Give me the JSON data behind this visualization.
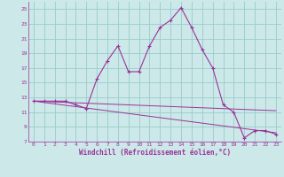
{
  "xlabel": "Windchill (Refroidissement éolien,°C)",
  "bg_color": "#cce8e8",
  "grid_color": "#99cccc",
  "line_color": "#993399",
  "xmin": -0.5,
  "xmax": 23.5,
  "ymin": 7,
  "ymax": 26,
  "yticks": [
    7,
    9,
    11,
    13,
    15,
    17,
    19,
    21,
    23,
    25
  ],
  "xticks": [
    0,
    1,
    2,
    3,
    4,
    5,
    6,
    7,
    8,
    9,
    10,
    11,
    12,
    13,
    14,
    15,
    16,
    17,
    18,
    19,
    20,
    21,
    22,
    23
  ],
  "curve_x": [
    0,
    1,
    2,
    3,
    4,
    5,
    6,
    7,
    8,
    9,
    10,
    11,
    12,
    13,
    14,
    15,
    16,
    17,
    18,
    19,
    20,
    21,
    22,
    23
  ],
  "curve_y": [
    12.5,
    12.5,
    12.5,
    12.5,
    12.0,
    11.5,
    15.5,
    18.0,
    20.0,
    16.5,
    16.5,
    20.0,
    22.5,
    23.5,
    25.2,
    22.5,
    19.5,
    17.0,
    12.0,
    11.0,
    7.5,
    8.5,
    8.5,
    8.0
  ],
  "trend1_x": [
    0,
    23
  ],
  "trend1_y": [
    12.5,
    11.2
  ],
  "trend2_x": [
    0,
    23
  ],
  "trend2_y": [
    12.5,
    8.2
  ],
  "tick_fontsize": 4.5,
  "xlabel_fontsize": 5.5
}
